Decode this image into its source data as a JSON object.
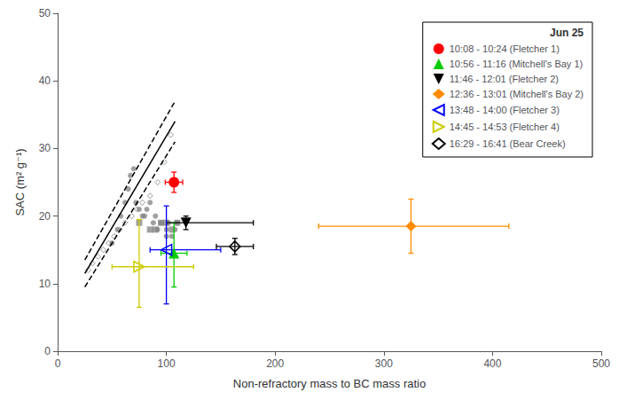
{
  "chart_data": {
    "type": "scatter",
    "xlabel": "Non-refractory mass to BC mass ratio",
    "ylabel": "SAC (m² g⁻¹)",
    "xlim": [
      0,
      500
    ],
    "ylim": [
      0,
      50
    ],
    "xticks": [
      0,
      100,
      200,
      300,
      400,
      500
    ],
    "yticks": [
      0,
      10,
      20,
      30,
      40,
      50
    ],
    "grid": false,
    "legend": "upper right",
    "legend_title": "Jun 25",
    "series": [
      {
        "type": "scatter",
        "color": "#808080",
        "marker": "circle",
        "x": [
          50,
          55,
          58,
          62,
          65,
          67,
          70,
          72,
          75,
          78,
          80,
          82,
          85,
          88,
          90,
          92,
          95,
          100,
          100,
          102,
          105,
          108,
          110
        ],
        "y": [
          16,
          18,
          20,
          22,
          24,
          26,
          27,
          22,
          21,
          20,
          20,
          21,
          22,
          19,
          20,
          18,
          19,
          17,
          18,
          19,
          17,
          18,
          19
        ]
      },
      {
        "type": "scatter",
        "color": "#808080",
        "marker": "square",
        "x": [
          75,
          85,
          90,
          95,
          100,
          105,
          110
        ],
        "y": [
          19,
          18,
          18,
          19,
          19,
          18,
          19
        ]
      },
      {
        "type": "scatter",
        "color": "#808080",
        "marker": "diamond_open",
        "x": [
          28,
          32,
          37,
          42,
          47,
          52,
          57,
          62,
          68,
          73,
          78,
          85,
          92,
          98,
          104
        ],
        "y": [
          12,
          13,
          14,
          15,
          16,
          17,
          18,
          19,
          20,
          21,
          22,
          23,
          25,
          28,
          32
        ]
      },
      {
        "type": "line",
        "color": "#000000",
        "line_style": "solid",
        "x": [
          25,
          108
        ],
        "y": [
          11.5,
          34
        ]
      },
      {
        "type": "line",
        "color": "#000000",
        "line_style": "dashed",
        "x": [
          25,
          108
        ],
        "y": [
          13.5,
          37
        ]
      },
      {
        "type": "line",
        "color": "#000000",
        "line_style": "dashed",
        "x": [
          25,
          108
        ],
        "y": [
          9.5,
          31
        ]
      },
      {
        "type": "scatter",
        "name": "10:08 - 10:24 (Fletcher 1)",
        "color": "#ff0000",
        "marker": "circle",
        "x": [
          107
        ],
        "y": [
          25
        ],
        "xerr_lo": [
          8
        ],
        "xerr_hi": [
          8
        ],
        "yerr_lo": [
          1.5
        ],
        "yerr_hi": [
          1.5
        ]
      },
      {
        "type": "scatter",
        "name": "10:56 - 11:16 (Mitchell's Bay 1)",
        "color": "#00cc00",
        "marker": "triangle_up",
        "x": [
          107
        ],
        "y": [
          14.5
        ],
        "xerr_lo": [
          12
        ],
        "xerr_hi": [
          12
        ],
        "yerr_lo": [
          5
        ],
        "yerr_hi": [
          4.5
        ]
      },
      {
        "type": "scatter",
        "name": "11:46 - 12:01 (Fletcher 2)",
        "color": "#000000",
        "marker": "triangle_down",
        "x": [
          118
        ],
        "y": [
          19
        ],
        "xerr_lo": [
          18
        ],
        "xerr_hi": [
          62
        ],
        "yerr_lo": [
          1
        ],
        "yerr_hi": [
          1
        ]
      },
      {
        "type": "scatter",
        "name": "12:36 - 13:01 (Mitchell's Bay 2)",
        "color": "#ff8c00",
        "marker": "diamond",
        "x": [
          325
        ],
        "y": [
          18.5
        ],
        "xerr_lo": [
          85
        ],
        "xerr_hi": [
          90
        ],
        "yerr_lo": [
          4
        ],
        "yerr_hi": [
          4
        ]
      },
      {
        "type": "scatter",
        "name": "13:48 - 14:00 (Fletcher 3)",
        "color": "#0000ff",
        "marker": "triangle_left_open",
        "x": [
          100
        ],
        "y": [
          15
        ],
        "xerr_lo": [
          15
        ],
        "xerr_hi": [
          50
        ],
        "yerr_lo": [
          8
        ],
        "yerr_hi": [
          6.5
        ]
      },
      {
        "type": "scatter",
        "name": "14:45 - 14:53 (Fletcher 4)",
        "color": "#cccc00",
        "marker": "triangle_right_open",
        "x": [
          75
        ],
        "y": [
          12.5
        ],
        "xerr_lo": [
          25
        ],
        "xerr_hi": [
          50
        ],
        "yerr_lo": [
          6
        ],
        "yerr_hi": [
          7
        ]
      },
      {
        "type": "scatter",
        "name": "16:29 - 16:41 (Bear Creek)",
        "color": "#000000",
        "marker": "diamond_open",
        "x": [
          163
        ],
        "y": [
          15.5
        ],
        "xerr_lo": [
          17
        ],
        "xerr_hi": [
          17
        ],
        "yerr_lo": [
          1.2
        ],
        "yerr_hi": [
          1.2
        ]
      }
    ]
  }
}
